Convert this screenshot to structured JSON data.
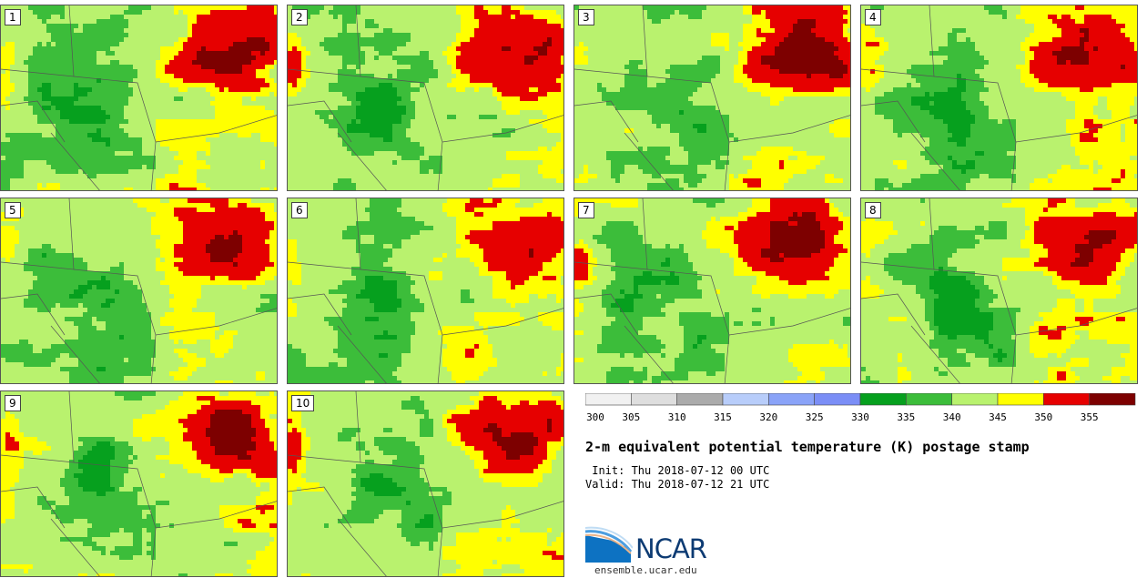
{
  "members": [
    "1",
    "2",
    "3",
    "4",
    "5",
    "6",
    "7",
    "8",
    "9",
    "10"
  ],
  "chart_data": {
    "type": "heatmap",
    "title": "2-m equivalent potential temperature (K) postage stamp",
    "init_label": " Init: Thu 2018-07-12 00 UTC",
    "valid_label": "Valid: Thu 2018-07-12 21 UTC",
    "units": "K",
    "colorbar": {
      "bounds": [
        300,
        305,
        310,
        315,
        320,
        325,
        330,
        335,
        340,
        345,
        350,
        355,
        360
      ],
      "tick_labels": [
        "300",
        "305",
        "310",
        "315",
        "320",
        "325",
        "330",
        "335",
        "340",
        "345",
        "350",
        "355"
      ],
      "colors": [
        "#f1f1f1",
        "#dedede",
        "#ababab",
        "#b8cdfa",
        "#8aa3f8",
        "#7b8ef6",
        "#06a01e",
        "#3cbd3a",
        "#b9f26e",
        "#ffff00",
        "#e60000",
        "#7d0000"
      ]
    }
  },
  "logo": {
    "name": "NCAR",
    "url": "ensemble.ucar.edu"
  }
}
